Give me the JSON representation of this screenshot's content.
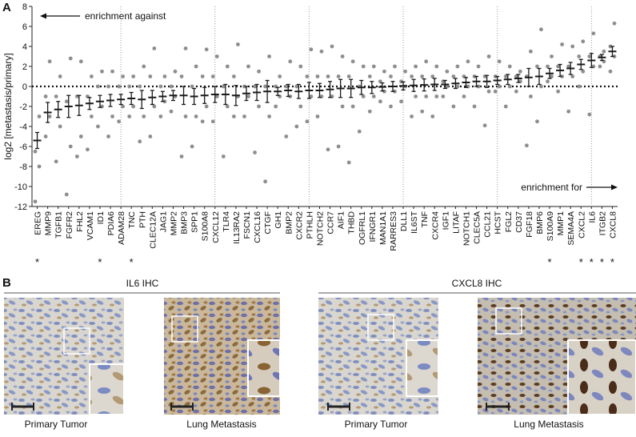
{
  "panel_a_label": "A",
  "chart_data": {
    "type": "dot",
    "y_label": "log2 [metastasis/primary]",
    "annotations": [
      "enrichment against",
      "enrichment for"
    ],
    "marker": "*",
    "significant_categories": [
      "EREG",
      "ID1",
      "TNC",
      "S100A9",
      "CXCL2",
      "IL6",
      "ITGB2",
      "CXCL8"
    ],
    "categories": [
      "EREG",
      "MMP9",
      "TGFB1",
      "FGFR2",
      "FHL2",
      "VCAM1",
      "ID1",
      "PDIA6",
      "ADAM28",
      "TNC",
      "PTH",
      "CLEC12A",
      "JAG1",
      "MMP2",
      "BMP3",
      "SPP1",
      "S100A8",
      "CXCL12",
      "TLR4",
      "IL13RA2",
      "FSCN1",
      "CXCL16",
      "CTGF",
      "GH1",
      "BMP2",
      "CXCR2",
      "PTHLH",
      "NOTCH2",
      "CCR7",
      "AIF1",
      "THBD",
      "OGFRL1",
      "IFNGR1",
      "MAN1A1",
      "RARRES3",
      "DLL1",
      "IL6ST",
      "TNF",
      "CXCR4",
      "IGF1",
      "LITAF",
      "NOTCH1",
      "CLEC5A",
      "CCL21",
      "HCST",
      "FGL2",
      "CD37",
      "FGF18",
      "BMP6",
      "S100A9",
      "MMP1",
      "SEMA4A",
      "CXCL2",
      "IL6",
      "ITGB2",
      "CXCL8"
    ],
    "values": [
      -5.4,
      -2.6,
      -2.3,
      -2.0,
      -1.9,
      -1.7,
      -1.5,
      -1.4,
      -1.3,
      -1.2,
      -1.3,
      -1.1,
      -1.0,
      -0.9,
      -0.9,
      -1.0,
      -0.9,
      -0.8,
      -0.8,
      -0.9,
      -0.7,
      -0.6,
      -0.5,
      -0.5,
      -0.4,
      -0.5,
      -0.4,
      -0.4,
      -0.3,
      -0.2,
      -0.2,
      -0.1,
      -0.1,
      -0.05,
      0,
      0.05,
      0.1,
      0.15,
      0.2,
      0.2,
      0.3,
      0.4,
      0.5,
      0.5,
      0.6,
      0.7,
      0.8,
      0.9,
      1.0,
      1.3,
      1.6,
      1.8,
      2.2,
      2.6,
      2.9,
      3.5
    ],
    "errors": [
      0.8,
      1.0,
      0.8,
      1.1,
      1.0,
      0.6,
      0.6,
      0.6,
      0.5,
      0.6,
      0.9,
      0.7,
      0.5,
      0.5,
      0.9,
      0.8,
      0.8,
      0.8,
      1.0,
      1.0,
      0.7,
      0.8,
      1.1,
      0.4,
      0.6,
      0.7,
      0.8,
      0.7,
      0.8,
      0.9,
      0.9,
      0.7,
      0.6,
      0.4,
      0.5,
      0.4,
      0.6,
      0.6,
      0.6,
      0.4,
      0.5,
      0.5,
      0.5,
      0.6,
      0.4,
      0.5,
      0.4,
      0.9,
      0.8,
      0.5,
      0.6,
      0.6,
      0.5,
      0.7,
      0.3,
      0.5
    ],
    "points": [
      [
        -11.5,
        -8,
        -6.5,
        -3
      ],
      [
        -5,
        -3,
        -1,
        2.5
      ],
      [
        -7.5,
        -4,
        -1,
        1
      ],
      [
        -10.8,
        -6,
        -1.5,
        2.8
      ],
      [
        -7,
        -5,
        -1,
        2.5
      ],
      [
        -6.3,
        -3,
        -1,
        1
      ],
      [
        -4,
        -2,
        0,
        1.5
      ],
      [
        -5,
        -3,
        0,
        1.5
      ],
      [
        -3.5,
        -2,
        0,
        1
      ],
      [
        -3,
        -2,
        0,
        1
      ],
      [
        -5.5,
        -3,
        0,
        2
      ],
      [
        -5,
        -2,
        1,
        3.8
      ],
      [
        -3,
        -1.5,
        0,
        1
      ],
      [
        -2.5,
        -1,
        0,
        1.5
      ],
      [
        -7,
        -3,
        1,
        3.8
      ],
      [
        -6,
        -3,
        0,
        2
      ],
      [
        -3.5,
        -2,
        1,
        3.7
      ],
      [
        -3.5,
        -1,
        1,
        3
      ],
      [
        -7,
        -2,
        0,
        2
      ],
      [
        -3,
        -1,
        1,
        4.2
      ],
      [
        -3,
        -1,
        0,
        2
      ],
      [
        -6.6,
        -2,
        0,
        1.5
      ],
      [
        -9.5,
        -3,
        0,
        3
      ],
      [
        -2,
        -1,
        0,
        1
      ],
      [
        -5,
        -1,
        0,
        2.5
      ],
      [
        -4,
        -2,
        0,
        2
      ],
      [
        -3.5,
        -1,
        1,
        3.7
      ],
      [
        -3,
        -1,
        1,
        3.5
      ],
      [
        -6.3,
        -1,
        1,
        4
      ],
      [
        -6,
        -2,
        1,
        3
      ],
      [
        -7.6,
        -2,
        1,
        2.5
      ],
      [
        -4.5,
        -1,
        0,
        2
      ],
      [
        -2.5,
        -1,
        1,
        2
      ],
      [
        -1.5,
        -0.5,
        0.5,
        1.5
      ],
      [
        -2,
        -0.5,
        1,
        2
      ],
      [
        -1.5,
        0,
        0.5,
        1.5
      ],
      [
        -3,
        -1,
        1,
        2
      ],
      [
        -2.5,
        -1,
        1,
        2.5
      ],
      [
        -3,
        -1,
        1,
        2
      ],
      [
        -1,
        0,
        0.5,
        1.5
      ],
      [
        -2,
        0,
        1,
        2
      ],
      [
        -1,
        0,
        1,
        2.5
      ],
      [
        -2,
        0,
        1,
        2
      ],
      [
        -3.9,
        -0.5,
        1,
        3
      ],
      [
        -0.5,
        0,
        1,
        2.5
      ],
      [
        -2,
        0,
        1,
        2
      ],
      [
        -0.5,
        0.5,
        1,
        1.5
      ],
      [
        -5.9,
        -1,
        1,
        3.5
      ],
      [
        -3.5,
        0,
        2,
        5.7
      ],
      [
        0.5,
        1,
        2,
        3
      ],
      [
        -0.5,
        1,
        2,
        4.2
      ],
      [
        -2.5,
        1,
        2,
        4
      ],
      [
        0,
        1.5,
        3,
        4.5
      ],
      [
        -2.8,
        2,
        3,
        5.3
      ],
      [
        2,
        2.5,
        3,
        3.5
      ],
      [
        1.5,
        3,
        4,
        6.3
      ]
    ],
    "point_color": "#8e8e8e",
    "mean_color": "#1a1a1a",
    "ylim": [
      -12,
      8
    ],
    "yticks": [
      -12,
      -10,
      -8,
      -6,
      -4,
      -2,
      0,
      2,
      4,
      6,
      8
    ],
    "reference_line": 0
  },
  "panel_b": {
    "label": "B",
    "groups": [
      {
        "title": "IL6 IHC",
        "images": [
          "Primary Tumor",
          "Lung Metastasis"
        ]
      },
      {
        "title": "CXCL8 IHC",
        "images": [
          "Primary Tumor",
          "Lung Metastasis"
        ]
      }
    ]
  }
}
